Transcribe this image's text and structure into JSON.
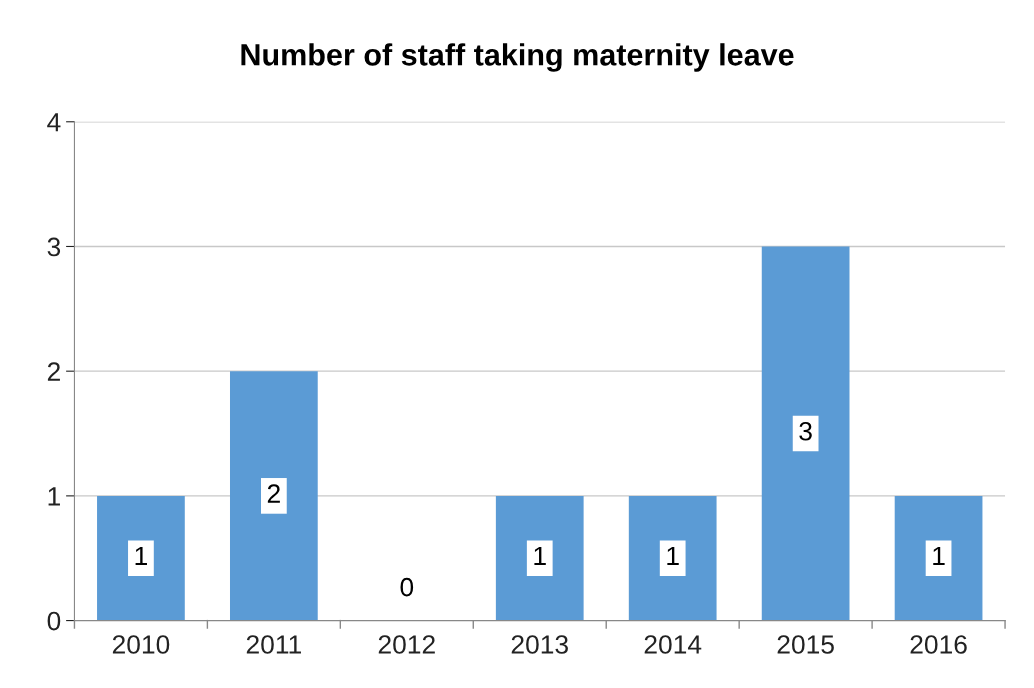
{
  "chart_data": {
    "type": "bar",
    "title": "Number of staff taking maternity leave",
    "categories": [
      "2010",
      "2011",
      "2012",
      "2013",
      "2014",
      "2015",
      "2016"
    ],
    "values": [
      1,
      2,
      0,
      1,
      1,
      3,
      1
    ],
    "color": "#5b9bd5",
    "ylim": [
      0,
      4
    ],
    "yticks": [
      0,
      1,
      2,
      3,
      4
    ],
    "grid": "y",
    "data_labels": true
  }
}
